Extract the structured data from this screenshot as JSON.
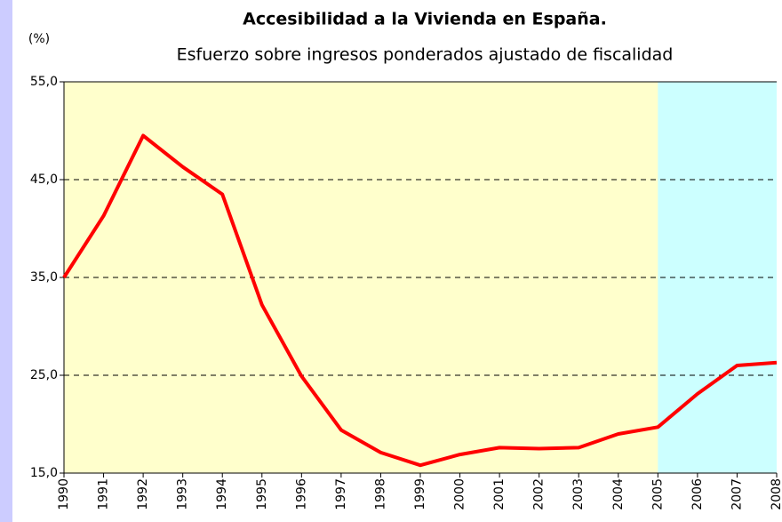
{
  "chart_data": {
    "type": "line",
    "title": "Accesibilidad a la Vivienda en España.",
    "subtitle": "Esfuerzo sobre ingresos ponderados ajustado de fiscalidad",
    "y_label": "(%)",
    "categories": [
      "1990",
      "1991",
      "1992",
      "1993",
      "1994",
      "1995",
      "1996",
      "1997",
      "1998",
      "1999",
      "2000",
      "2001",
      "2002",
      "2003",
      "2004",
      "2005",
      "2006",
      "2007",
      "2008"
    ],
    "series": [
      {
        "name": null,
        "color": "#ff0000",
        "values": [
          35.0,
          41.3,
          49.5,
          46.3,
          43.5,
          32.2,
          24.9,
          19.4,
          17.1,
          15.8,
          16.9,
          17.6,
          17.5,
          17.6,
          19.0,
          19.7,
          23.1,
          26.0,
          26.3
        ]
      }
    ],
    "ylim": [
      15,
      55
    ],
    "yticks": [
      {
        "value": 15,
        "label": "15,0"
      },
      {
        "value": 25,
        "label": "25,0"
      },
      {
        "value": 35,
        "label": "35,0"
      },
      {
        "value": 45,
        "label": "45,0"
      },
      {
        "value": 55,
        "label": "55,0"
      }
    ],
    "grid": true,
    "plot_background": "#ffffcc",
    "highlight": {
      "start": "2005",
      "end": "2008",
      "color": "#ccffff"
    }
  }
}
